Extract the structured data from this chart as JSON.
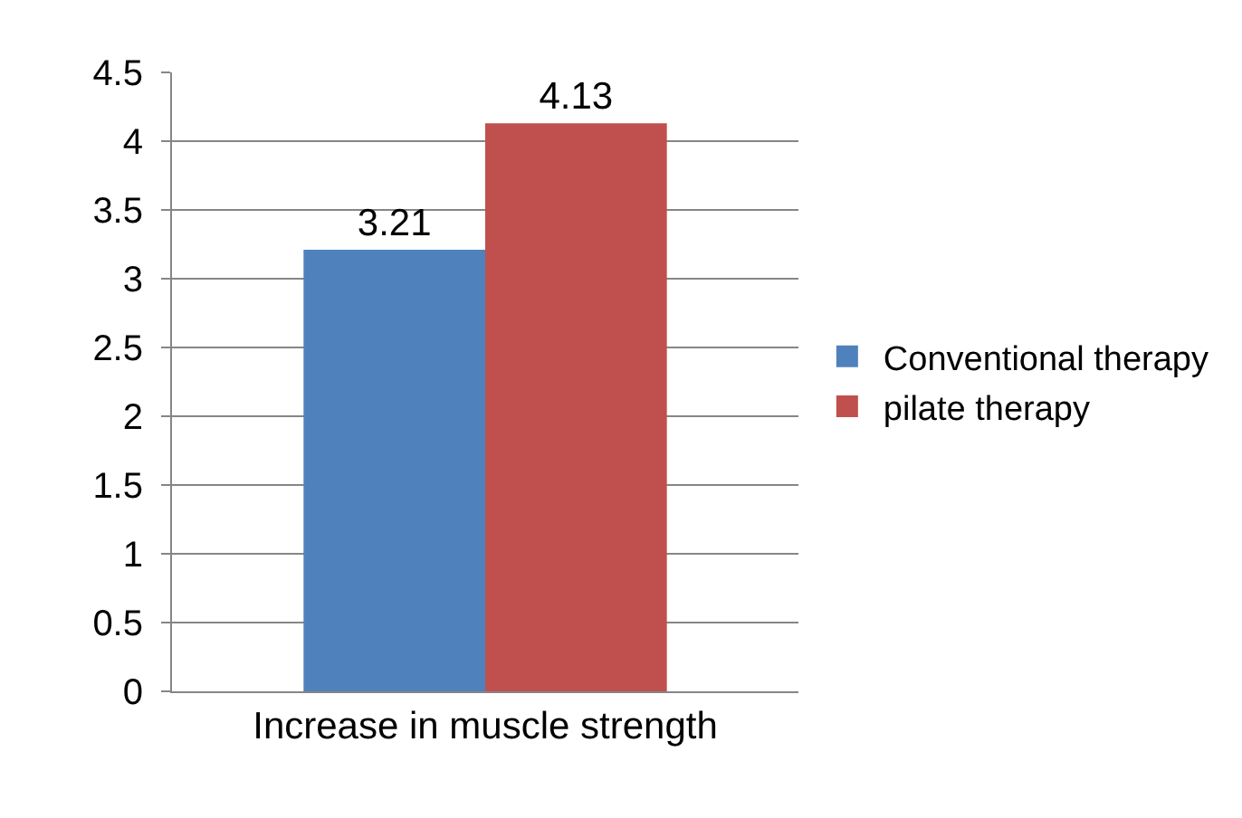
{
  "chart_data": {
    "type": "bar",
    "categories": [
      "Increase in muscle strength"
    ],
    "series": [
      {
        "name": "Conventional therapy",
        "color": "#4f81bd",
        "values": [
          3.21
        ]
      },
      {
        "name": "pilate therapy",
        "color": "#c0504d",
        "values": [
          4.13
        ]
      }
    ],
    "ylim": [
      0,
      4.5
    ],
    "yticks": [
      0,
      0.5,
      1,
      1.5,
      2,
      2.5,
      3,
      3.5,
      4,
      4.5
    ],
    "grid": "y",
    "legend": "right",
    "data_labels": true
  }
}
